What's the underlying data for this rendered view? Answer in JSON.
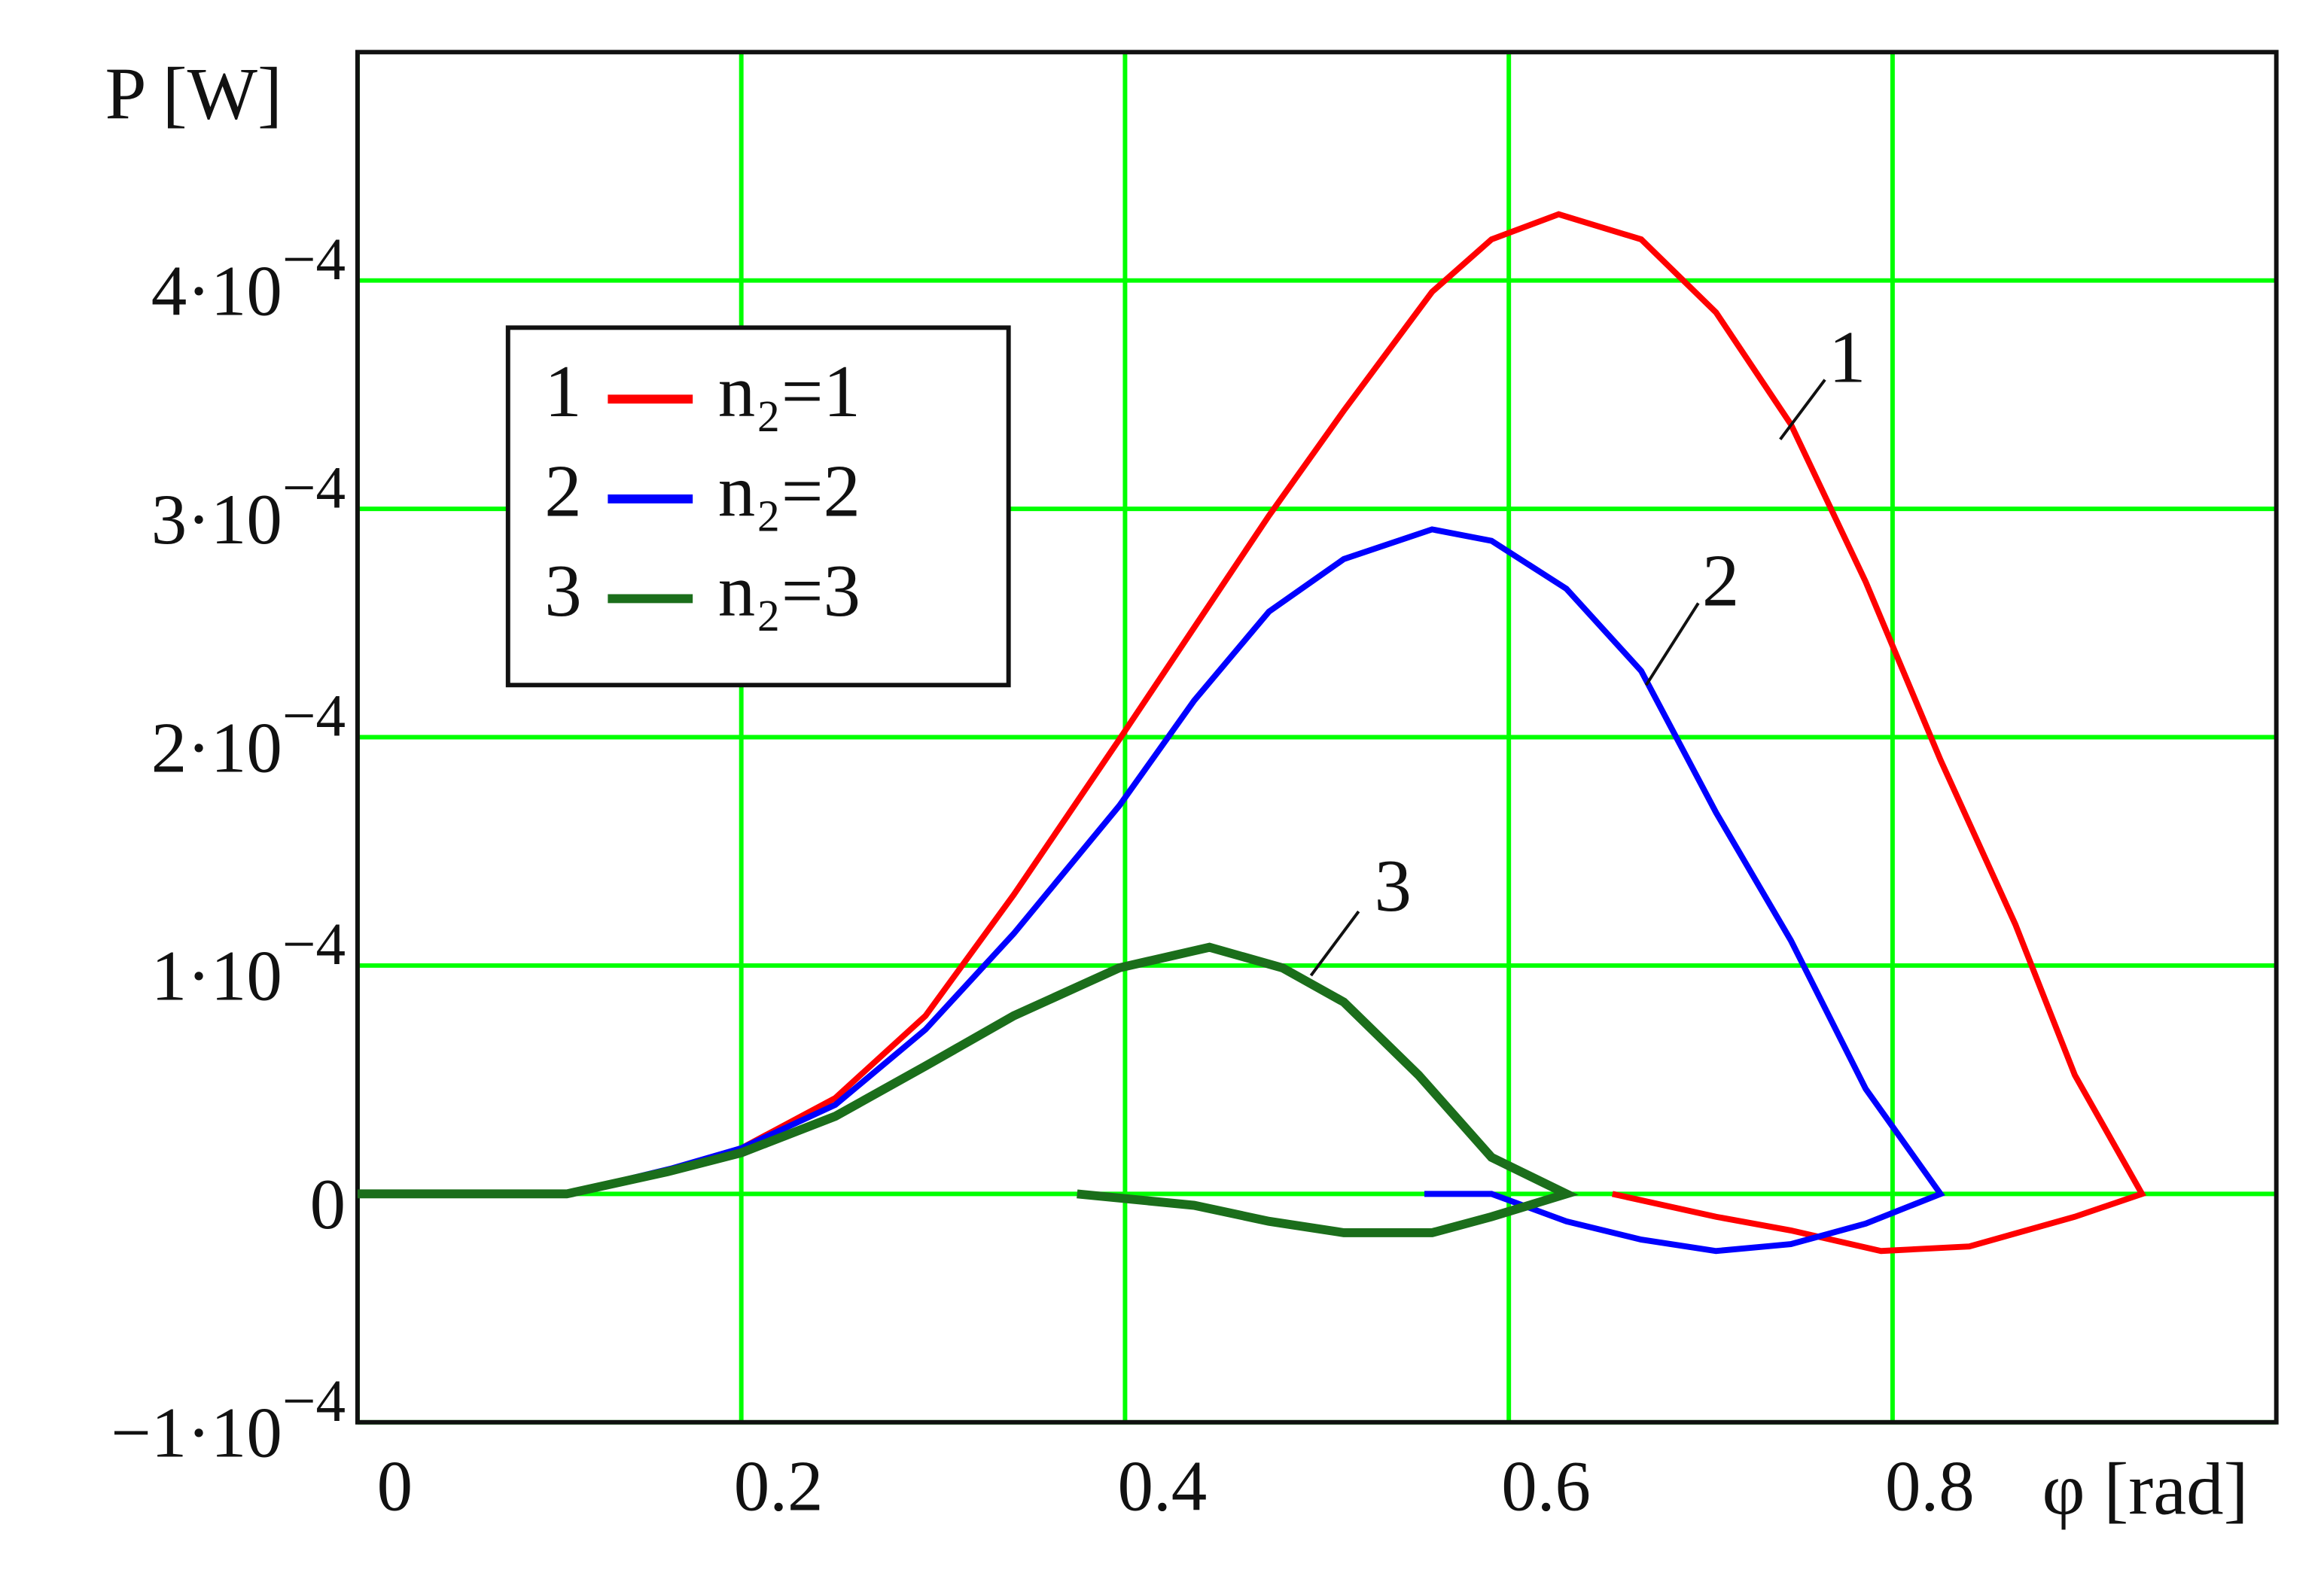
{
  "chart_data": {
    "type": "line",
    "xlabel": "φ [rad]",
    "ylabel": "P [W]",
    "xlim": [
      0,
      1.0
    ],
    "xticks": [
      0,
      0.2,
      0.4,
      0.6,
      0.8
    ],
    "ylim": [
      -0.0001,
      0.0005
    ],
    "yticks": [
      {
        "value": -0.0001,
        "label": "−1·10−4"
      },
      {
        "value": 0,
        "label": "0"
      },
      {
        "value": 0.0001,
        "label": "1·10−4"
      },
      {
        "value": 0.0002,
        "label": "2·10−4"
      },
      {
        "value": 0.0003,
        "label": "3·10−4"
      },
      {
        "value": 0.0004,
        "label": "4·10−4"
      }
    ],
    "grid": true,
    "grid_color": "#00ff00",
    "legend": "upper left",
    "series": [
      {
        "name": "n₂=1",
        "label": "1",
        "color": "#ff0000",
        "x": [
          0,
          0.05,
          0.109,
          0.163,
          0.2,
          0.249,
          0.296,
          0.342,
          0.397,
          0.436,
          0.475,
          0.514,
          0.56,
          0.591,
          0.626,
          0.669,
          0.708,
          0.747,
          0.786,
          0.825,
          0.864,
          0.895,
          0.93,
          0.895,
          0.84,
          0.794,
          0.747,
          0.708,
          0.654
        ],
        "values": [
          0,
          0,
          0,
          1e-05,
          2e-05,
          4.2e-05,
          7.8e-05,
          0.000131,
          0.000199,
          0.000248,
          0.000297,
          0.000343,
          0.000395,
          0.000418,
          0.000429,
          0.000418,
          0.000386,
          0.000337,
          0.000268,
          0.00019,
          0.000118,
          5.2e-05,
          0,
          -1e-05,
          -2.3e-05,
          -2.5e-05,
          -1.6e-05,
          -1e-05,
          0
        ]
      },
      {
        "name": "n₂=2",
        "label": "2",
        "color": "#0000ff",
        "x": [
          0,
          0.05,
          0.109,
          0.163,
          0.2,
          0.249,
          0.296,
          0.342,
          0.397,
          0.436,
          0.475,
          0.514,
          0.56,
          0.591,
          0.63,
          0.669,
          0.708,
          0.747,
          0.786,
          0.825,
          0.786,
          0.747,
          0.708,
          0.669,
          0.63,
          0.591,
          0.556
        ],
        "values": [
          0,
          0,
          0,
          1.1e-05,
          2e-05,
          3.9e-05,
          7.2e-05,
          0.000114,
          0.00017,
          0.000216,
          0.000255,
          0.000278,
          0.000291,
          0.000286,
          0.000265,
          0.000229,
          0.000167,
          0.000111,
          4.6e-05,
          0,
          -1.3e-05,
          -2.2e-05,
          -2.5e-05,
          -2e-05,
          -1.2e-05,
          0,
          0
        ]
      },
      {
        "name": "n₂=3",
        "label": "3",
        "color": "#1b6e1b",
        "x": [
          0,
          0.05,
          0.109,
          0.163,
          0.2,
          0.249,
          0.296,
          0.342,
          0.397,
          0.444,
          0.482,
          0.514,
          0.553,
          0.591,
          0.63,
          0.591,
          0.56,
          0.514,
          0.475,
          0.436,
          0.375
        ],
        "values": [
          0,
          0,
          0,
          1e-05,
          1.8e-05,
          3.4e-05,
          5.6e-05,
          7.8e-05,
          9.9e-05,
          0.000108,
          9.9e-05,
          8.4e-05,
          5.2e-05,
          1.6e-05,
          0,
          -1e-05,
          -1.7e-05,
          -1.7e-05,
          -1.2e-05,
          -5e-06,
          0
        ]
      }
    ]
  }
}
